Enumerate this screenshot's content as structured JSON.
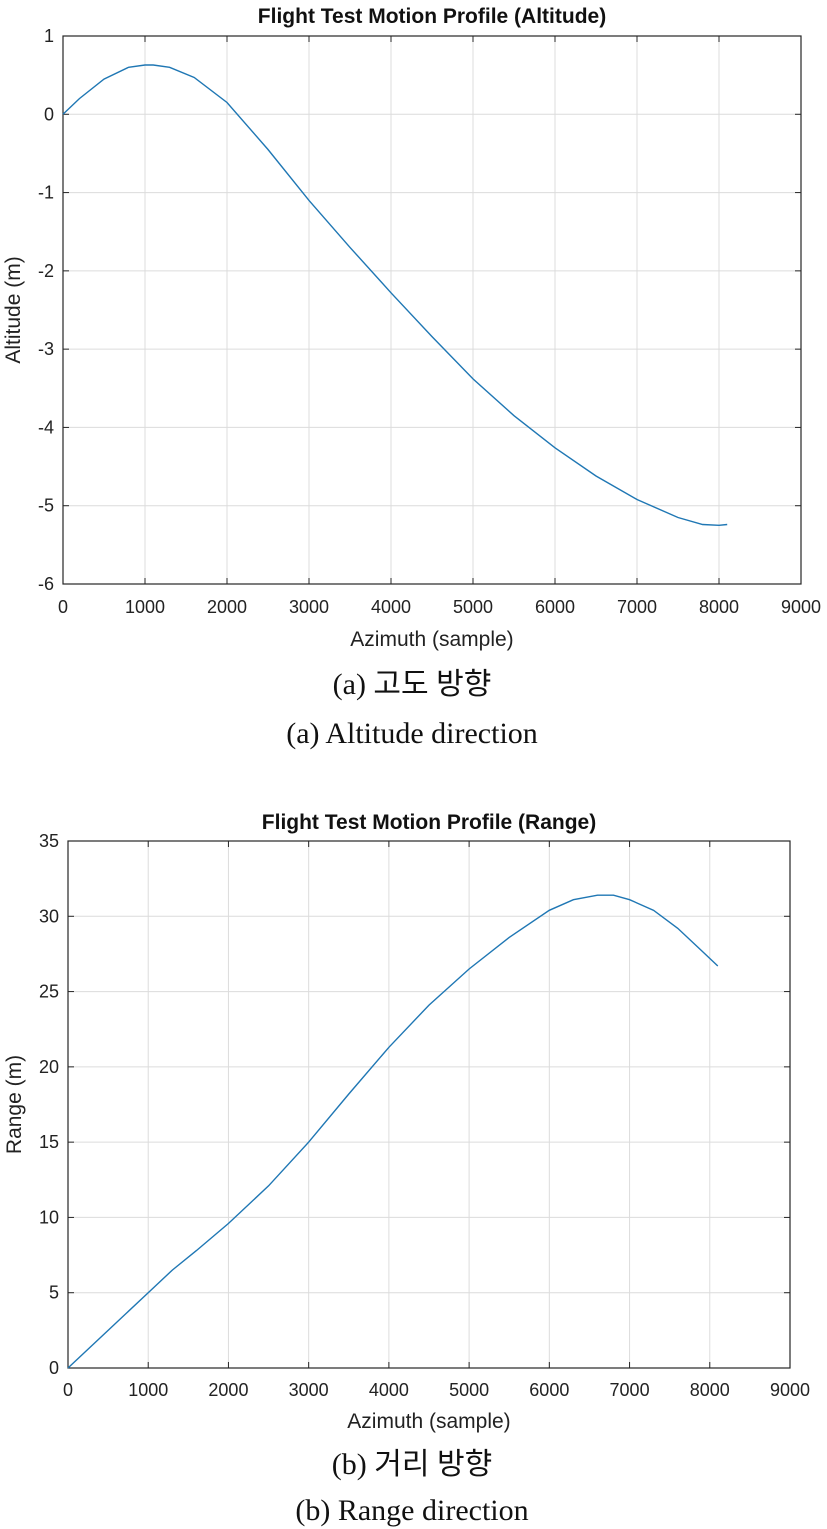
{
  "chart_data": [
    {
      "type": "line",
      "title": "Flight Test Motion Profile (Altitude)",
      "xlabel": "Azimuth (sample)",
      "ylabel": "Altitude (m)",
      "xlim": [
        0,
        9000
      ],
      "ylim": [
        -6,
        1
      ],
      "xticks": [
        0,
        1000,
        2000,
        3000,
        4000,
        5000,
        6000,
        7000,
        8000,
        9000
      ],
      "yticks": [
        1,
        0,
        -1,
        -2,
        -3,
        -4,
        -5,
        -6
      ],
      "grid": true,
      "legend": "none",
      "series": [
        {
          "x": [
            0,
            200,
            500,
            800,
            1000,
            1100,
            1300,
            1600,
            2000,
            2500,
            3000,
            3500,
            4000,
            4500,
            5000,
            5500,
            6000,
            6500,
            7000,
            7500,
            7800,
            8000,
            8100
          ],
          "y": [
            0,
            0.2,
            0.45,
            0.6,
            0.63,
            0.63,
            0.6,
            0.47,
            0.15,
            -0.45,
            -1.1,
            -1.7,
            -2.28,
            -2.84,
            -3.38,
            -3.85,
            -4.26,
            -4.62,
            -4.92,
            -5.15,
            -5.24,
            -5.25,
            -5.24
          ]
        }
      ],
      "caption_ko": "(a)  고도  방향",
      "caption_en": "(a)  Altitude  direction"
    },
    {
      "type": "line",
      "title": "Flight Test Motion Profile (Range)",
      "xlabel": "Azimuth (sample)",
      "ylabel": "Range (m)",
      "xlim": [
        0,
        9000
      ],
      "ylim": [
        0,
        35
      ],
      "xticks": [
        0,
        1000,
        2000,
        3000,
        4000,
        5000,
        6000,
        7000,
        8000,
        9000
      ],
      "yticks": [
        35,
        30,
        25,
        20,
        15,
        10,
        5,
        0
      ],
      "grid": true,
      "legend": "none",
      "series": [
        {
          "x": [
            0,
            500,
            1000,
            1300,
            1600,
            2000,
            2500,
            3000,
            3500,
            4000,
            4500,
            5000,
            5500,
            6000,
            6300,
            6600,
            6800,
            7000,
            7300,
            7600,
            7900,
            8100
          ],
          "y": [
            0,
            2.5,
            5,
            6.5,
            7.8,
            9.6,
            12.1,
            15,
            18.2,
            21.3,
            24.1,
            26.5,
            28.6,
            30.4,
            31.1,
            31.4,
            31.4,
            31.1,
            30.4,
            29.2,
            27.7,
            26.7
          ]
        }
      ],
      "caption_ko": "(b)  거리  방향",
      "caption_en": "(b)  Range  direction"
    }
  ]
}
